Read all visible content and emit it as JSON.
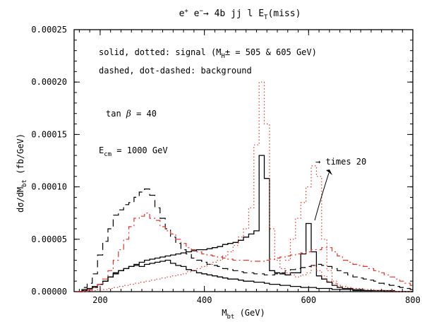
{
  "chart_data": {
    "type": "line",
    "title": "e⁺ e⁻ →  4b jj l E_T(miss)",
    "xlabel": "M_bt  (GeV)",
    "ylabel": "dσ/dM_bt  (fb/GeV)",
    "xlim": [
      150,
      800
    ],
    "ylim": [
      0,
      0.00025
    ],
    "x_ticks": [
      "200",
      "400",
      "600",
      "800"
    ],
    "y_ticks": [
      "0.00000",
      "0.00005",
      "0.00010",
      "0.00015",
      "0.00020",
      "0.00025"
    ],
    "grid": false,
    "annotations": {
      "line1": "solid, dotted: signal (M_H± = 505 & 605 GeV)",
      "line2": "dashed, dot-dashed: background",
      "line3": "tan β = 40",
      "line4": "E_cm = 1000 GeV",
      "arrow_note": "→ times 20"
    },
    "colors": {
      "black": "#000000",
      "red": "#e8312a"
    },
    "series": [
      {
        "style": "solid",
        "color": "#000000",
        "x": [
          160,
          170,
          180,
          190,
          200,
          210,
          220,
          230,
          240,
          250,
          260,
          270,
          280,
          290,
          300,
          310,
          320,
          330,
          340,
          350,
          360,
          370,
          380,
          390,
          400,
          410,
          420,
          430,
          440,
          450,
          460,
          470,
          480,
          490,
          500,
          510,
          520,
          530,
          540,
          550,
          560,
          570,
          580,
          590,
          600,
          610,
          620,
          630,
          640,
          650,
          660,
          670,
          680,
          690,
          700,
          710,
          720,
          730,
          740,
          750,
          760,
          770,
          780,
          790,
          800
        ],
        "y": [
          0,
          2e-06,
          3e-06,
          5e-06,
          7e-06,
          1e-05,
          1.4e-05,
          1.7e-05,
          2e-05,
          2.2e-05,
          2.4e-05,
          2.6e-05,
          2.8e-05,
          3e-05,
          3.1e-05,
          3.2e-05,
          3.3e-05,
          3.4e-05,
          3.5e-05,
          3.6e-05,
          3.7e-05,
          3.8e-05,
          3.9e-05,
          4e-05,
          4e-05,
          4.1e-05,
          4.2e-05,
          4.3e-05,
          4.5e-05,
          4.6e-05,
          4.7e-05,
          4.9e-05,
          5.2e-05,
          5.5e-05,
          5.8e-05,
          0.00013,
          0.000108,
          2e-05,
          1.8e-05,
          1.7e-05,
          1.6e-05,
          1.8e-05,
          1.8e-05,
          3.6e-05,
          6.5e-05,
          3.8e-05,
          1.5e-05,
          1.2e-05,
          9e-06,
          6e-06,
          4e-06,
          3e-06,
          3e-06,
          2e-06,
          2e-06,
          1e-06,
          1e-06,
          1e-06,
          1e-06,
          1e-06,
          1e-06,
          0,
          0,
          0,
          0
        ]
      },
      {
        "style": "solid",
        "color": "#000000",
        "x": [
          160,
          170,
          180,
          190,
          200,
          210,
          220,
          230,
          240,
          250,
          260,
          270,
          280,
          290,
          300,
          310,
          320,
          330,
          340,
          350,
          360,
          370,
          380,
          390,
          400,
          410,
          420,
          430,
          440,
          450,
          460,
          470,
          480,
          490,
          500,
          510,
          520,
          530,
          540,
          550,
          560,
          570,
          580,
          590,
          600,
          610,
          620,
          630,
          640,
          650,
          660,
          670,
          680,
          690,
          700,
          710,
          720,
          730,
          740,
          750,
          760,
          770,
          780,
          790,
          800
        ],
        "y": [
          0,
          1e-06,
          2e-06,
          4e-06,
          7e-06,
          1e-05,
          1.4e-05,
          1.8e-05,
          2e-05,
          2.2e-05,
          2.4e-05,
          2.5e-05,
          2.4e-05,
          2.6e-05,
          2.7e-05,
          2.8e-05,
          2.9e-05,
          3e-05,
          2.7e-05,
          2.5e-05,
          2.4e-05,
          2.1e-05,
          2e-05,
          1.8e-05,
          1.7e-05,
          1.6e-05,
          1.5e-05,
          1.4e-05,
          1.3e-05,
          1.2e-05,
          1.2e-05,
          1.1e-05,
          1e-05,
          1e-05,
          9e-06,
          9e-06,
          8e-06,
          7e-06,
          7e-06,
          6e-06,
          6e-06,
          5e-06,
          5e-06,
          4e-06,
          4e-06,
          4e-06,
          3e-06,
          3e-06,
          3e-06,
          2e-06,
          2e-06,
          2e-06,
          2e-06,
          1e-06,
          1e-06,
          1e-06,
          1e-06,
          1e-06,
          1e-06,
          0,
          0,
          0,
          0,
          0,
          0
        ]
      },
      {
        "style": "dashed",
        "color": "#000000",
        "x": [
          160,
          170,
          180,
          190,
          200,
          210,
          220,
          230,
          240,
          250,
          260,
          270,
          280,
          290,
          300,
          310,
          320,
          330,
          340,
          350,
          360,
          370,
          380,
          390,
          400,
          410,
          420,
          430,
          440,
          450,
          460,
          470,
          480,
          490,
          500,
          510,
          520,
          530,
          540,
          550,
          560,
          570,
          580,
          590,
          600,
          610,
          620,
          630,
          640,
          650,
          660,
          670,
          680,
          690,
          700,
          710,
          720,
          730,
          740,
          750,
          760,
          770,
          780,
          790,
          800
        ],
        "y": [
          0,
          4e-06,
          8e-06,
          1.7e-05,
          3.5e-05,
          4.8e-05,
          6e-05,
          7.3e-05,
          7.8e-05,
          8.3e-05,
          8.5e-05,
          9e-05,
          9.5e-05,
          9.8e-05,
          9.2e-05,
          8e-05,
          7e-05,
          6e-05,
          5.2e-05,
          4.6e-05,
          4e-05,
          3.6e-05,
          3.2e-05,
          3e-05,
          2.8e-05,
          2.6e-05,
          2.5e-05,
          2.4e-05,
          2.2e-05,
          2.1e-05,
          2e-05,
          1.9e-05,
          1.8e-05,
          1.8e-05,
          1.7e-05,
          1.7e-05,
          1.6e-05,
          1.6e-05,
          1.7e-05,
          1.8e-05,
          2e-05,
          2.1e-05,
          2.2e-05,
          2.3e-05,
          2.4e-05,
          2.5e-05,
          2.6e-05,
          2.5e-05,
          2.4e-05,
          2.2e-05,
          2e-05,
          1.8e-05,
          1.6e-05,
          1.4e-05,
          1.3e-05,
          1.2e-05,
          1.1e-05,
          1e-05,
          8e-06,
          7e-06,
          6e-06,
          5e-06,
          4e-06,
          3e-06,
          2e-06
        ]
      },
      {
        "style": "dot-dashed",
        "color": "#e8312a",
        "x": [
          160,
          170,
          180,
          190,
          200,
          210,
          220,
          230,
          240,
          250,
          260,
          270,
          280,
          290,
          300,
          310,
          320,
          330,
          340,
          350,
          360,
          370,
          380,
          390,
          400,
          410,
          420,
          430,
          440,
          450,
          460,
          470,
          480,
          490,
          500,
          510,
          520,
          530,
          540,
          550,
          560,
          570,
          580,
          590,
          600,
          610,
          620,
          630,
          640,
          650,
          660,
          670,
          680,
          690,
          700,
          710,
          720,
          730,
          740,
          750,
          760,
          770,
          780,
          790,
          800
        ],
        "y": [
          0,
          1e-06,
          2e-06,
          4e-06,
          7e-06,
          1.2e-05,
          2e-05,
          3e-05,
          4e-05,
          5e-05,
          6.2e-05,
          7e-05,
          7.2e-05,
          7.5e-05,
          7e-05,
          6.8e-05,
          6.2e-05,
          5.8e-05,
          5.5e-05,
          5e-05,
          4.6e-05,
          4.2e-05,
          4e-05,
          3.8e-05,
          3.6e-05,
          3.5e-05,
          3.4e-05,
          3.3e-05,
          3.2e-05,
          3.1e-05,
          3e-05,
          3e-05,
          3e-05,
          2.9e-05,
          2.9e-05,
          2.9e-05,
          3e-05,
          3.1e-05,
          3.2e-05,
          3.3e-05,
          3.4e-05,
          3.5e-05,
          3.6e-05,
          3.7e-05,
          3.8e-05,
          4e-05,
          4e-05,
          4.2e-05,
          4.2e-05,
          3.8e-05,
          3.4e-05,
          3e-05,
          2.8e-05,
          2.6e-05,
          2.5e-05,
          2.4e-05,
          2.2e-05,
          2e-05,
          1.8e-05,
          1.6e-05,
          1.4e-05,
          1.2e-05,
          1e-05,
          8e-06,
          6e-06
        ]
      },
      {
        "style": "dotted",
        "color": "#e8312a",
        "x": [
          160,
          170,
          180,
          190,
          200,
          210,
          220,
          230,
          240,
          250,
          260,
          270,
          280,
          290,
          300,
          310,
          320,
          330,
          340,
          350,
          360,
          370,
          380,
          390,
          400,
          410,
          420,
          430,
          440,
          450,
          460,
          470,
          480,
          490,
          500,
          510,
          520,
          530,
          540,
          550,
          560,
          570,
          580,
          590,
          600,
          610,
          620,
          630,
          640,
          650,
          660,
          670,
          680,
          690,
          700,
          710,
          720,
          730,
          740,
          750,
          760,
          770,
          780,
          790,
          800
        ],
        "y": [
          0,
          0,
          1e-06,
          1e-06,
          2e-06,
          2e-06,
          3e-06,
          4e-06,
          5e-06,
          6e-06,
          7e-06,
          8e-06,
          9e-06,
          1e-05,
          1.1e-05,
          1.2e-05,
          1.3e-05,
          1.4e-05,
          1.5e-05,
          1.6e-05,
          1.7e-05,
          1.9e-05,
          2e-05,
          2.2e-05,
          2.4e-05,
          2.6e-05,
          2.8e-05,
          3e-05,
          3.4e-05,
          3.8e-05,
          4.4e-05,
          5.2e-05,
          6e-05,
          8e-05,
          0.00014,
          0.0002,
          0.00016,
          6e-05,
          3e-05,
          2.2e-05,
          1.8e-05,
          1.6e-05,
          1.4e-05,
          1.6e-05,
          1.8e-05,
          2.5e-05,
          2e-05,
          1.5e-05,
          1e-05,
          8e-06,
          6e-06,
          5e-06,
          4e-06,
          3e-06,
          3e-06,
          2e-06,
          2e-06,
          1e-06,
          1e-06,
          1e-06,
          1e-06,
          0,
          0,
          0,
          0
        ]
      },
      {
        "style": "dotted",
        "color": "#e8312a",
        "x": [
          560,
          570,
          580,
          590,
          600,
          610,
          620,
          630,
          640,
          650,
          660
        ],
        "y": [
          3e-05,
          5e-05,
          7e-05,
          8.5e-05,
          0.0001,
          0.00012,
          0.00011,
          5e-05,
          2e-05,
          1e-05,
          5e-06
        ]
      }
    ]
  }
}
